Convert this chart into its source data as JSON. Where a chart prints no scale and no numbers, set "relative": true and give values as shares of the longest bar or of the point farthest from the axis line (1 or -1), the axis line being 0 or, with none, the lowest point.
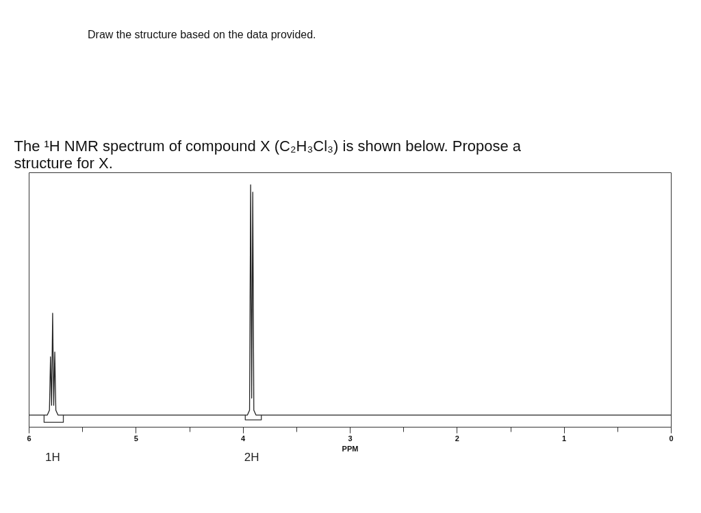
{
  "chart_data": {
    "type": "line",
    "title": "Draw the structure based on the data provided.",
    "subtitle": "The ¹H NMR spectrum of compound X (C₂H₃Cl₃) is shown below. Propose a structure for X.",
    "xlabel": "PPM",
    "relative": true,
    "x": [
      6,
      5.83,
      5.81,
      5.8,
      5.79,
      5.78,
      5.77,
      5.76,
      5.75,
      5.73,
      3.96,
      3.94,
      3.93,
      3.92,
      3.91,
      3.9,
      3.88,
      0
    ],
    "series": [
      {
        "color": "#222222",
        "values": [
          0.05,
          0.05,
          0.07,
          0.29,
          0.09,
          0.47,
          0.09,
          0.31,
          0.07,
          0.05,
          0.05,
          0.07,
          1,
          0.12,
          0.97,
          0.07,
          0.05,
          0.05
        ]
      },
      {
        "type": "line",
        "color": "#333333",
        "x": [
          5.86,
          5.86,
          5.68,
          5.68
        ],
        "values": [
          0.05,
          0.02,
          0.02,
          0.05
        ]
      },
      {
        "type": "line",
        "color": "#333333",
        "x": [
          3.98,
          3.98,
          3.83,
          3.83
        ],
        "values": [
          0.05,
          0.03,
          0.03,
          0.05
        ]
      }
    ],
    "xlim": [
      6,
      0
    ],
    "xticks": [
      6,
      {
        "value": 5.5,
        "label": null
      },
      5,
      {
        "value": 4.5,
        "label": null
      },
      4,
      {
        "value": 3.5,
        "label": null
      },
      3,
      {
        "value": 2.5,
        "label": null
      },
      2,
      {
        "value": 1.5,
        "label": null
      },
      1,
      {
        "value": 0.5,
        "label": null
      },
      0
    ],
    "annotations": [
      "1H",
      "2H"
    ]
  }
}
